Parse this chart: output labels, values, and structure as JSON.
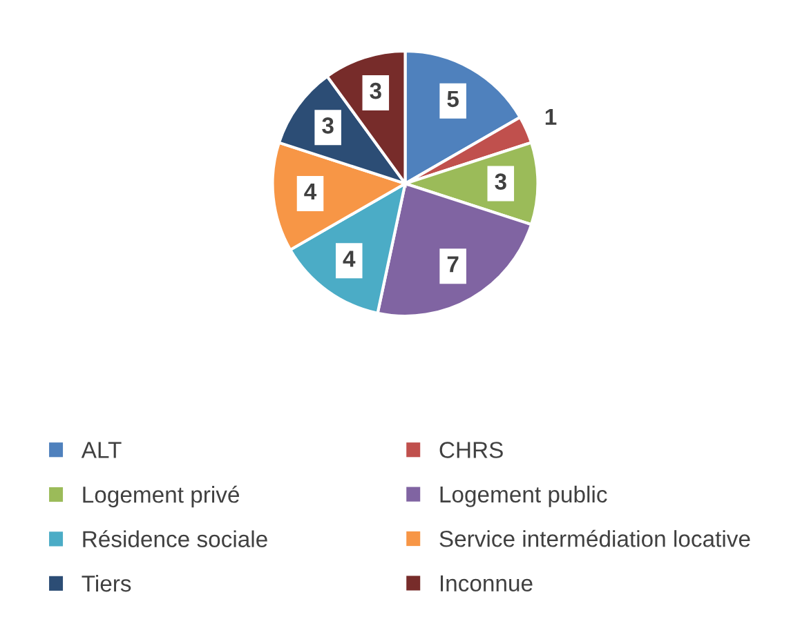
{
  "chart_data": {
    "type": "pie",
    "categories": [
      "ALT",
      "CHRS",
      "Logement privé",
      "Logement public",
      "Résidence sociale",
      "Service intermédiation locative",
      "Tiers",
      "Inconnue"
    ],
    "values": [
      5,
      1,
      3,
      7,
      4,
      4,
      3,
      3
    ],
    "colors": [
      "#4f81bd",
      "#c0504d",
      "#9bbb59",
      "#8064a2",
      "#4bacc6",
      "#f79646",
      "#2c4d75",
      "#772c2a"
    ],
    "data_labels": true,
    "legend": "bottom"
  }
}
